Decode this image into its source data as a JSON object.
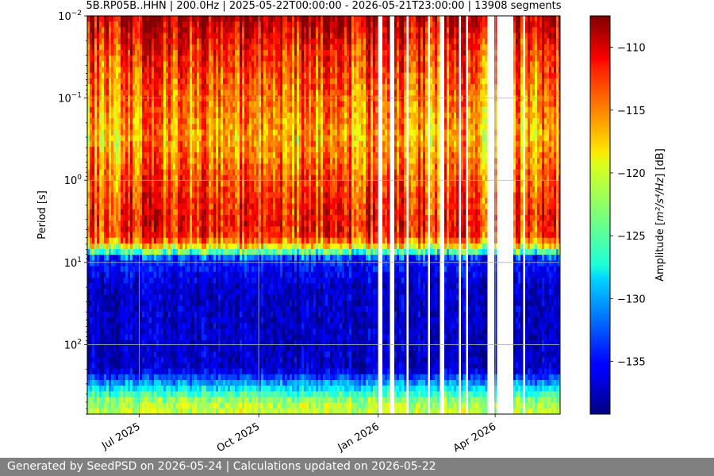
{
  "chart_data": {
    "type": "heatmap",
    "title": "5B.RP05B..HHN | 200.0Hz | 2025-05-22T00:00:00 - 2026-05-21T23:00:00 | 13908 segments",
    "ylabel": "Period [s]",
    "y_scale": "log",
    "y_inverted": true,
    "ylim": [
      0.01,
      700
    ],
    "y_ticks": [
      {
        "value": 0.01,
        "base": "10",
        "exp": "−2"
      },
      {
        "value": 0.1,
        "base": "10",
        "exp": "−1"
      },
      {
        "value": 1,
        "base": "10",
        "exp": "0"
      },
      {
        "value": 10,
        "base": "10",
        "exp": "1"
      },
      {
        "value": 100,
        "base": "10",
        "exp": "2"
      }
    ],
    "xlim": [
      "2025-05-22",
      "2026-05-21"
    ],
    "x_ticks": [
      {
        "date": "2025-07-01",
        "label": "Jul 2025"
      },
      {
        "date": "2025-10-01",
        "label": "Oct 2025"
      },
      {
        "date": "2026-01-01",
        "label": "Jan 2026"
      },
      {
        "date": "2026-04-01",
        "label": "Apr 2026"
      }
    ],
    "grid": true,
    "colormap": "jet",
    "colorbar": {
      "label_prefix": "Amplitude [",
      "label_units": "m²/s⁴/Hz",
      "label_suffix": "] [dB]",
      "range": [
        -139.2,
        -107.5
      ],
      "ticks": [
        -110,
        -115,
        -120,
        -125,
        -130,
        -135
      ]
    },
    "data_gaps": [
      [
        "2026-01-01",
        "2026-01-04"
      ],
      [
        "2026-01-10",
        "2026-01-13"
      ],
      [
        "2026-01-22",
        "2026-01-24"
      ],
      [
        "2026-02-08",
        "2026-02-10"
      ],
      [
        "2026-02-18",
        "2026-02-20"
      ],
      [
        "2026-03-03",
        "2026-03-05"
      ],
      [
        "2026-03-10",
        "2026-03-12"
      ],
      [
        "2026-03-25",
        "2026-04-01"
      ],
      [
        "2026-04-03",
        "2026-04-15"
      ],
      [
        "2026-04-22",
        "2026-04-24"
      ]
    ],
    "amplitude_profile_db": [
      {
        "period": 0.01,
        "db": -109
      },
      {
        "period": 0.03,
        "db": -113
      },
      {
        "period": 0.3,
        "db": -117
      },
      {
        "period": 1,
        "db": -114
      },
      {
        "period": 3,
        "db": -112
      },
      {
        "period": 5,
        "db": -113
      },
      {
        "period": 7,
        "db": -122
      },
      {
        "period": 9,
        "db": -134
      },
      {
        "period": 20,
        "db": -137
      },
      {
        "period": 200,
        "db": -137
      },
      {
        "period": 300,
        "db": -130
      },
      {
        "period": 500,
        "db": -122
      },
      {
        "period": 700,
        "db": -121
      }
    ]
  },
  "footer": {
    "text": "Generated by SeedPSD on 2026-05-24 | Calculations updated on 2026-05-22"
  }
}
